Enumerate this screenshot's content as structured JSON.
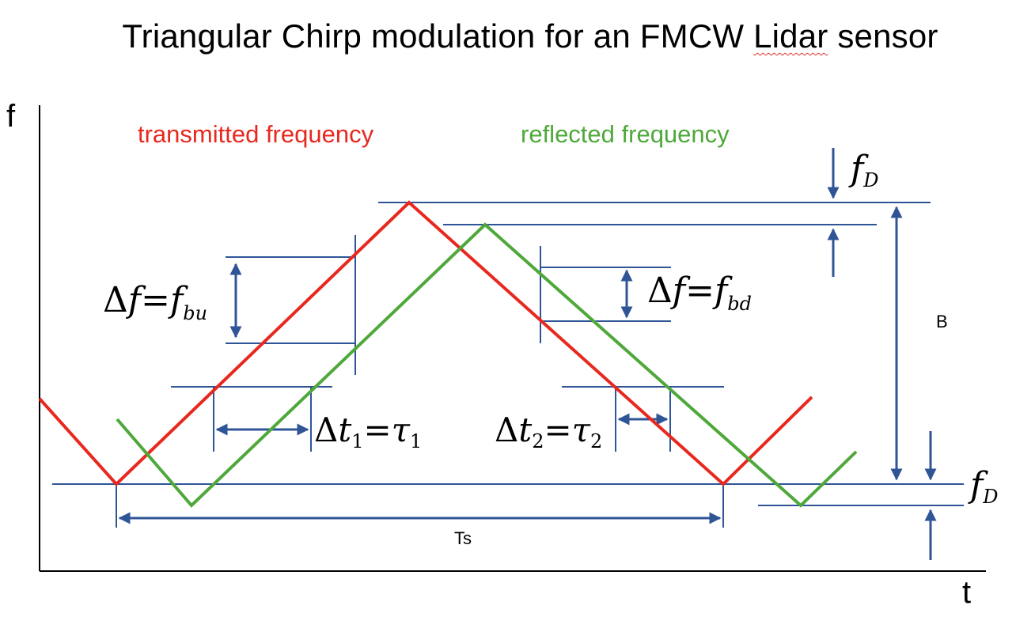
{
  "title": {
    "prefix": "Triangular Chirp modulation for an FMCW ",
    "underlined_word": "Lidar",
    "suffix": " sensor"
  },
  "axes": {
    "y_label": "f",
    "x_label": "t"
  },
  "legend": {
    "transmitted": "transmitted frequency",
    "reflected": "reflected frequency"
  },
  "colors": {
    "transmitted": "#e8281e",
    "reflected": "#4ea83a",
    "annotation": "#2f5597",
    "axis": "#000000"
  },
  "labels": {
    "delta_f_up": {
      "lhs": "Δ",
      "var": "f",
      "eq": "=",
      "rhs": "f",
      "sub": "bu"
    },
    "delta_f_down": {
      "lhs": "Δ",
      "var": "f",
      "eq": "=",
      "rhs": "f",
      "sub": "bd"
    },
    "delta_t1": {
      "lhs": "Δ",
      "var": "t",
      "sub1": "1",
      "eq": "=",
      "rhs": "τ",
      "sub2": "1"
    },
    "delta_t2": {
      "lhs": "Δ",
      "var": "t",
      "sub1": "2",
      "eq": "=",
      "rhs": "τ",
      "sub2": "2"
    },
    "doppler_top": {
      "var": "f",
      "sub": "D"
    },
    "doppler_bottom": {
      "var": "f",
      "sub": "D"
    },
    "bandwidth": "B",
    "period": "Ts"
  }
}
